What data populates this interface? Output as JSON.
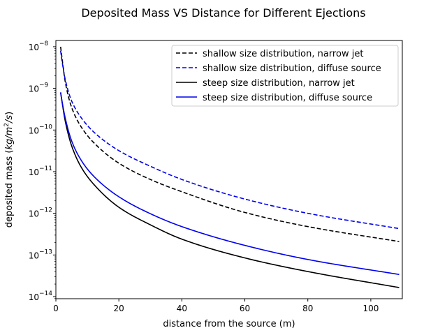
{
  "chart_data": {
    "type": "line",
    "title": "Deposited Mass VS Distance for Different Ejections",
    "xlabel": "distance from the source (m)",
    "ylabel": "deposited mass (kg/m²/s)",
    "y_scale": "log",
    "xlim": [
      0,
      110
    ],
    "ylim_log10": [
      -14.05,
      -7.85
    ],
    "x_ticks": [
      0,
      20,
      40,
      60,
      80,
      100
    ],
    "y_ticks": [
      {
        "value": 1e-08,
        "base": "10",
        "exp": "−8"
      },
      {
        "value": 1e-09,
        "base": "10",
        "exp": "−9"
      },
      {
        "value": 1e-10,
        "base": "10",
        "exp": "−10"
      },
      {
        "value": 1e-11,
        "base": "10",
        "exp": "−11"
      },
      {
        "value": 1e-12,
        "base": "10",
        "exp": "−12"
      },
      {
        "value": 1e-13,
        "base": "10",
        "exp": "−13"
      },
      {
        "value": 1e-14,
        "base": "10",
        "exp": "−14"
      }
    ],
    "grid": false,
    "legend_placement": "top-right",
    "series": [
      {
        "name": "shallow size distribution, narrow jet",
        "color": "#000000",
        "style": "dashed",
        "x": [
          1.5,
          2,
          3,
          5,
          8,
          12,
          20,
          30,
          40,
          60,
          80,
          109
        ],
        "y": [
          1e-08,
          5e-09,
          1.4e-09,
          3.5e-10,
          1.2e-10,
          5e-11,
          1.6e-11,
          6.5e-12,
          3.3e-12,
          1.05e-12,
          4.8e-13,
          2.1e-13
        ]
      },
      {
        "name": "shallow size distribution, diffuse source",
        "color": "#0000ee",
        "style": "dashed",
        "x": [
          1.5,
          2,
          3,
          5,
          8,
          12,
          20,
          30,
          40,
          60,
          80,
          109
        ],
        "y": [
          8e-09,
          4.3e-09,
          1.6e-09,
          5e-10,
          2e-10,
          9e-11,
          3.2e-11,
          1.35e-11,
          6.5e-12,
          2.2e-12,
          1e-12,
          4.3e-13
        ]
      },
      {
        "name": "steep size distribution, narrow jet",
        "color": "#000000",
        "style": "solid",
        "x": [
          1.5,
          2,
          3,
          5,
          8,
          12,
          20,
          30,
          40,
          60,
          80,
          109
        ],
        "y": [
          8e-10,
          4.5e-10,
          1.6e-10,
          4.2e-11,
          1.3e-11,
          5e-12,
          1.4e-12,
          5.3e-13,
          2.4e-13,
          8.5e-14,
          4e-14,
          1.65e-14
        ]
      },
      {
        "name": "steep size distribution, diffuse source",
        "color": "#0000ee",
        "style": "solid",
        "x": [
          1.5,
          2,
          3,
          5,
          8,
          12,
          20,
          30,
          40,
          60,
          80,
          109
        ],
        "y": [
          8e-10,
          4.7e-10,
          1.9e-10,
          5.5e-11,
          1.9e-11,
          7.8e-12,
          2.5e-12,
          9.8e-13,
          4.8e-13,
          1.7e-13,
          7.8e-14,
          3.4e-14
        ]
      }
    ]
  }
}
